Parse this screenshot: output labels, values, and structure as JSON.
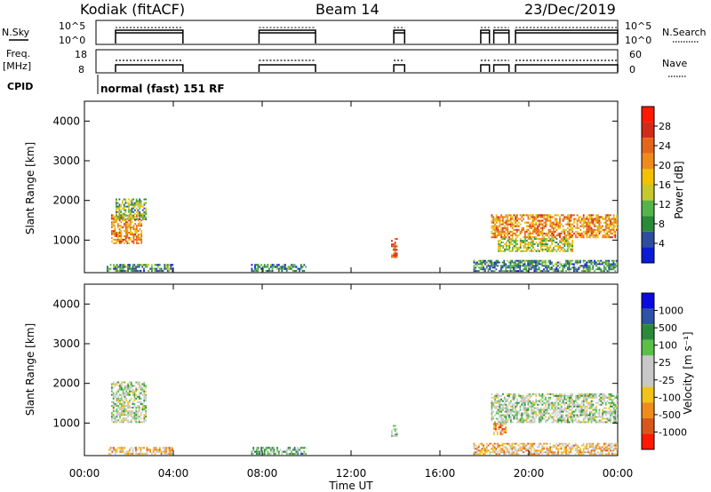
{
  "header": {
    "station": "Kodiak (fitACF)",
    "beam": "Beam 14",
    "date": "23/Dec/2019"
  },
  "colors": {
    "axis": "#000000",
    "power_scale": [
      "#0a1bd6",
      "#2e4d9c",
      "#2a8a3a",
      "#56b44a",
      "#c7c82e",
      "#f2c200",
      "#f08a1c",
      "#e5651a",
      "#d42a1a",
      "#ff1a00"
    ],
    "velocity_scale": [
      "#0a0ae0",
      "#2d52a8",
      "#2a8a3a",
      "#5bbf4a",
      "#c8c8c8",
      "#c8c8c8",
      "#f0c21a",
      "#ef8c1a",
      "#d8581a",
      "#ff1a00"
    ]
  },
  "left_labels": {
    "nsky": "N.Sky",
    "nsky_ticks": [
      "10^5",
      "10^0"
    ],
    "freq": "Freq.",
    "freq_unit": "[MHz]",
    "freq_ticks": [
      "18",
      "8"
    ],
    "cpid": "CPID",
    "cpid_value": "normal (fast) 151 RF"
  },
  "right_labels": {
    "nsearch": "N.Search",
    "nsearch_ticks": [
      "10^5",
      "10^0"
    ],
    "nave": "Nave",
    "nave_ticks": [
      "60",
      "0"
    ]
  },
  "x_axis": {
    "title": "Time UT",
    "ticks": [
      "00:00",
      "04:00",
      "08:00",
      "12:00",
      "16:00",
      "20:00",
      "00:00"
    ]
  },
  "chart_data": [
    {
      "type": "heatmap",
      "name": "power",
      "ylabel": "Slant Range [km]",
      "ylim": [
        180,
        4500
      ],
      "yticks": [
        1000,
        2000,
        3000,
        4000
      ],
      "xlim_hours": [
        0,
        24
      ],
      "colorbar_label": "Power [dB]",
      "colorbar_ticks": [
        "4",
        "8",
        "12",
        "16",
        "20",
        "24",
        "28"
      ],
      "regions": [
        {
          "t0": 1.2,
          "t1": 2.6,
          "r0": 900,
          "r1": 1650,
          "level": 6
        },
        {
          "t0": 1.4,
          "t1": 2.8,
          "r0": 1500,
          "r1": 2050,
          "level": 3
        },
        {
          "t0": 13.8,
          "t1": 14.1,
          "r0": 550,
          "r1": 1050,
          "level": 7
        },
        {
          "t0": 18.3,
          "t1": 24.0,
          "r0": 1050,
          "r1": 1650,
          "level": 6
        },
        {
          "t0": 18.6,
          "t1": 22.0,
          "r0": 700,
          "r1": 1050,
          "level": 4
        },
        {
          "t0": 1.0,
          "t1": 4.0,
          "r0": 200,
          "r1": 400,
          "level": 2
        },
        {
          "t0": 7.5,
          "t1": 10.0,
          "r0": 200,
          "r1": 400,
          "level": 2
        },
        {
          "t0": 17.5,
          "t1": 24.0,
          "r0": 200,
          "r1": 500,
          "level": 2
        }
      ]
    },
    {
      "type": "heatmap",
      "name": "velocity",
      "ylabel": "Slant Range [km]",
      "ylim": [
        180,
        4500
      ],
      "yticks": [
        1000,
        2000,
        3000,
        4000
      ],
      "xlim_hours": [
        0,
        24
      ],
      "colorbar_label": "Velocity [m s^-1]",
      "colorbar_ticks": [
        "1000",
        "500",
        "100",
        "25",
        "-25",
        "-100",
        "-500",
        "-1000"
      ],
      "regions": [
        {
          "t0": 1.2,
          "t1": 2.8,
          "r0": 1000,
          "r1": 2050,
          "level": 4
        },
        {
          "t0": 13.8,
          "t1": 14.1,
          "r0": 650,
          "r1": 950,
          "level": 4
        },
        {
          "t0": 18.3,
          "t1": 24.0,
          "r0": 1000,
          "r1": 1750,
          "level": 4
        },
        {
          "t0": 18.4,
          "t1": 19.0,
          "r0": 700,
          "r1": 1000,
          "level": 7
        },
        {
          "t0": 1.0,
          "t1": 4.0,
          "r0": 200,
          "r1": 400,
          "level": 6
        },
        {
          "t0": 7.5,
          "t1": 10.0,
          "r0": 200,
          "r1": 400,
          "level": 3
        },
        {
          "t0": 17.5,
          "t1": 24.0,
          "r0": 200,
          "r1": 500,
          "level": 6
        }
      ]
    }
  ],
  "operation_periods_hours": [
    [
      0.9,
      4.0
    ],
    [
      7.5,
      10.1
    ],
    [
      13.7,
      14.2
    ],
    [
      17.7,
      18.1
    ],
    [
      18.3,
      19.0
    ],
    [
      19.3,
      24.0
    ]
  ]
}
